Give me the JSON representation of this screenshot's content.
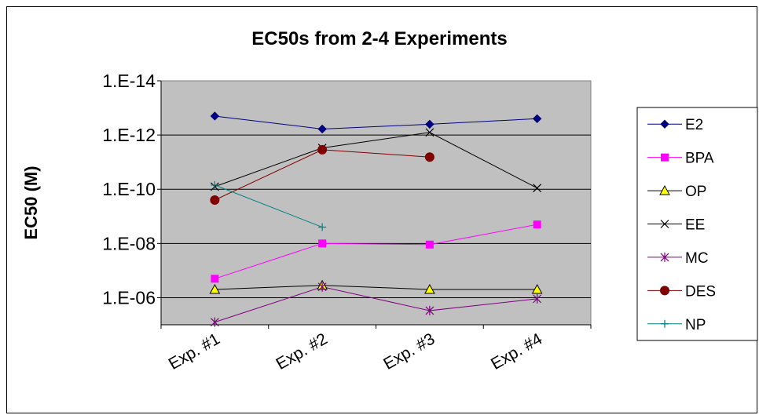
{
  "chart_data": {
    "type": "line",
    "title": "EC50s from 2-4 Experiments",
    "ylabel": "EC50 (M)",
    "xlabel": "",
    "y_scale": "log",
    "y_axis_reversed": true,
    "ylim": [
      1e-14,
      1e-05
    ],
    "y_ticks": [
      1e-14,
      1e-12,
      1e-10,
      1e-08,
      1e-06
    ],
    "y_tick_labels": [
      "1.E-14",
      "1.E-12",
      "1.E-10",
      "1.E-08",
      "1.E-06"
    ],
    "grid": "horizontal major gridlines",
    "plot_background": "#c0c0c0",
    "legend_position": "right",
    "categories": [
      "Exp. #1",
      "Exp. #2",
      "Exp. #3",
      "Exp. #4"
    ],
    "series": [
      {
        "name": "E2",
        "color": "#000080",
        "marker": "diamond",
        "values": [
          2e-13,
          6e-13,
          4e-13,
          2.5e-13
        ]
      },
      {
        "name": "BPA",
        "color": "#ff00ff",
        "marker": "square",
        "values": [
          2e-07,
          1e-08,
          1.1e-08,
          2e-09
        ]
      },
      {
        "name": "OP",
        "color": "#000000",
        "marker": "triangle",
        "values": [
          5e-07,
          3.5e-07,
          5e-07,
          5e-07
        ]
      },
      {
        "name": "EE",
        "color": "#000000",
        "marker": "x",
        "values": [
          8e-11,
          3e-12,
          8e-13,
          9e-11
        ]
      },
      {
        "name": "MC",
        "color": "#800080",
        "marker": "star",
        "values": [
          8e-06,
          4e-07,
          3e-06,
          1.1e-06
        ]
      },
      {
        "name": "DES",
        "color": "#800000",
        "marker": "circle",
        "values": [
          2.5e-10,
          3.5e-12,
          6.5e-12,
          null
        ]
      },
      {
        "name": "NP",
        "color": "#008080",
        "marker": "plus",
        "values": [
          7e-11,
          2.5e-09,
          null,
          null
        ]
      }
    ]
  }
}
